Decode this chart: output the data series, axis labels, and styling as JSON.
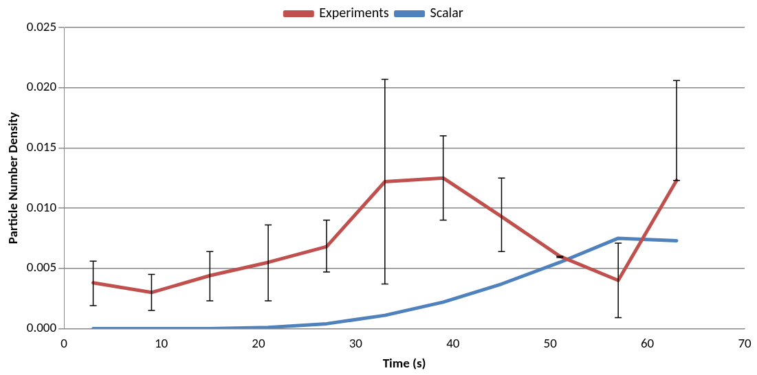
{
  "chart_data": {
    "type": "line",
    "xlabel": "Time (s)",
    "ylabel": "Particle Number Density",
    "xlim": [
      0,
      70
    ],
    "xticks": [
      0,
      10,
      20,
      30,
      40,
      50,
      60,
      70
    ],
    "ylim": [
      0,
      0.025
    ],
    "yticks": [
      {
        "value": 0,
        "label": "0.000"
      },
      {
        "value": 0.005,
        "label": "0.005"
      },
      {
        "value": 0.01,
        "label": "0.010"
      },
      {
        "value": 0.015,
        "label": "0.015"
      },
      {
        "value": 0.02,
        "label": "0.020"
      },
      {
        "value": 0.025,
        "label": "0.025"
      }
    ],
    "grid": "y",
    "legend": "top",
    "marker": "none",
    "line_style": "solid",
    "series": [
      {
        "name": "Experiments",
        "color": "#c0504d",
        "x": [
          3,
          9,
          15,
          21,
          27,
          33,
          39,
          45,
          51,
          57,
          63
        ],
        "values": [
          0.0038,
          0.003,
          0.0044,
          0.0055,
          0.0068,
          0.0122,
          0.0125,
          0.0093,
          0.006,
          0.004,
          0.0123
        ],
        "errors": [
          [
            0.0019,
            0.0056
          ],
          [
            0.0015,
            0.0045
          ],
          [
            0.0023,
            0.0064
          ],
          [
            0.0023,
            0.0086
          ],
          [
            0.0047,
            0.009
          ],
          [
            0.0037,
            0.0207
          ],
          [
            0.009,
            0.016
          ],
          [
            0.0064,
            0.0125
          ],
          [
            0.0059,
            0.006
          ],
          [
            0.0009,
            0.0071
          ],
          [
            0.0123,
            0.0206
          ]
        ]
      },
      {
        "name": "Scalar",
        "color": "#4f81bd",
        "x": [
          3,
          9,
          15,
          21,
          27,
          33,
          39,
          45,
          51,
          57,
          63
        ],
        "values": [
          0,
          0,
          0,
          0.0001,
          0.0004,
          0.0011,
          0.0022,
          0.0037,
          0.0055,
          0.0075,
          0.0073
        ]
      }
    ]
  }
}
